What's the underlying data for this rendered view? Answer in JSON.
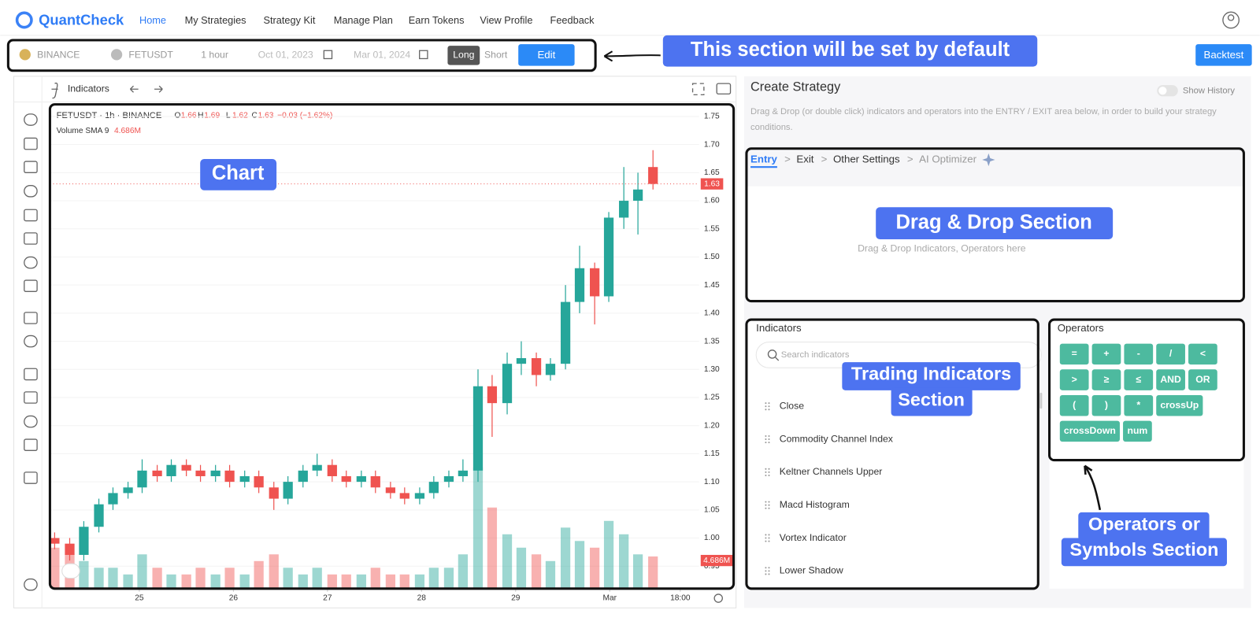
{
  "header": {
    "logo": "QuantCheck",
    "nav": [
      "Home",
      "My Strategies",
      "Strategy Kit",
      "Manage Plan",
      "Earn Tokens",
      "View Profile",
      "Feedback"
    ]
  },
  "toolbar": {
    "exchange": "BINANCE",
    "symbol": "FETUSDT",
    "interval": "1 hour",
    "start_date": "Oct 01, 2023",
    "end_date": "Mar 01, 2024",
    "long": "Long",
    "short": "Short",
    "edit": "Edit",
    "backtest": "Backtest"
  },
  "chart_panel": {
    "indicators_button": "Indicators",
    "symbol_info": "FETUSDT · 1h · BINANCE",
    "ohlc": [
      {
        "label": "O",
        "value": "1.66"
      },
      {
        "label": "H",
        "value": "1.69"
      },
      {
        "label": "L",
        "value": "1.62"
      },
      {
        "label": "C",
        "value": "1.63"
      }
    ],
    "change": "−0.03 (−1.62%)",
    "volume_label": "Volume SMA 9",
    "volume_value": "4.686M",
    "price_tag": "1.63",
    "volume_tag": "4.686M"
  },
  "chart_data": {
    "type": "candlestick",
    "up_color": "#26a69a",
    "down_color": "#ef5350",
    "x": [
      24.1,
      24.26,
      24.41,
      24.57,
      24.72,
      24.88,
      25.03,
      25.19,
      25.34,
      25.5,
      25.65,
      25.81,
      25.96,
      26.12,
      26.27,
      26.43,
      26.58,
      26.74,
      26.89,
      27.05,
      27.2,
      27.36,
      27.51,
      27.67,
      27.82,
      27.98,
      28.13,
      28.29,
      28.44,
      28.6,
      28.75,
      28.91,
      29.06,
      29.22,
      29.37,
      29.53,
      29.68,
      29.84,
      29.99,
      30.15,
      30.3,
      30.46
    ],
    "open": [
      1.0,
      0.99,
      0.97,
      1.02,
      1.06,
      1.08,
      1.09,
      1.12,
      1.11,
      1.13,
      1.12,
      1.11,
      1.12,
      1.1,
      1.11,
      1.09,
      1.07,
      1.1,
      1.12,
      1.13,
      1.11,
      1.1,
      1.11,
      1.09,
      1.08,
      1.07,
      1.08,
      1.1,
      1.11,
      1.12,
      1.27,
      1.24,
      1.31,
      1.32,
      1.29,
      1.31,
      1.42,
      1.48,
      1.43,
      1.57,
      1.6,
      1.66
    ],
    "high": [
      1.01,
      1.0,
      1.03,
      1.07,
      1.09,
      1.1,
      1.14,
      1.13,
      1.14,
      1.14,
      1.13,
      1.13,
      1.13,
      1.12,
      1.12,
      1.1,
      1.11,
      1.13,
      1.15,
      1.14,
      1.12,
      1.12,
      1.12,
      1.1,
      1.09,
      1.09,
      1.11,
      1.12,
      1.14,
      1.3,
      1.29,
      1.33,
      1.35,
      1.33,
      1.32,
      1.45,
      1.52,
      1.49,
      1.58,
      1.66,
      1.65,
      1.69
    ],
    "low": [
      0.98,
      0.96,
      0.96,
      1.01,
      1.05,
      1.07,
      1.08,
      1.1,
      1.1,
      1.11,
      1.1,
      1.1,
      1.09,
      1.09,
      1.08,
      1.05,
      1.06,
      1.09,
      1.11,
      1.1,
      1.09,
      1.09,
      1.08,
      1.07,
      1.06,
      1.06,
      1.07,
      1.09,
      1.1,
      1.1,
      1.18,
      1.22,
      1.29,
      1.27,
      1.28,
      1.3,
      1.4,
      1.38,
      1.42,
      1.55,
      1.54,
      1.62
    ],
    "close": [
      0.99,
      0.97,
      1.02,
      1.06,
      1.08,
      1.09,
      1.12,
      1.11,
      1.13,
      1.12,
      1.11,
      1.12,
      1.1,
      1.11,
      1.09,
      1.07,
      1.1,
      1.12,
      1.13,
      1.11,
      1.1,
      1.11,
      1.09,
      1.08,
      1.07,
      1.08,
      1.1,
      1.11,
      1.12,
      1.27,
      1.24,
      1.31,
      1.32,
      1.29,
      1.31,
      1.42,
      1.48,
      1.43,
      1.57,
      1.6,
      1.62,
      1.63
    ],
    "volume": [
      6,
      5,
      4,
      3,
      3,
      2,
      5,
      3,
      2,
      2,
      3,
      2,
      3,
      2,
      4,
      5,
      3,
      2,
      3,
      2,
      2,
      2,
      3,
      2,
      2,
      2,
      3,
      3,
      5,
      18,
      12,
      8,
      6,
      5,
      4,
      9,
      7,
      6,
      10,
      8,
      5,
      4.686
    ],
    "xlim": [
      24.05,
      30.95
    ],
    "xticks": [
      25,
      26,
      27,
      28,
      29,
      {
        "value": 30,
        "label": "Mar"
      },
      {
        "value": 30.75,
        "label": "18:00"
      }
    ],
    "ylim": [
      0.95,
      1.75
    ],
    "yticks": [
      0.95,
      {
        "value": 1.0,
        "label": "1.00"
      },
      1.05,
      {
        "value": 1.1,
        "label": "1.10"
      },
      1.15,
      {
        "value": 1.2,
        "label": "1.20"
      },
      1.25,
      {
        "value": 1.3,
        "label": "1.30"
      },
      1.35,
      {
        "value": 1.4,
        "label": "1.40"
      },
      1.45,
      {
        "value": 1.5,
        "label": "1.50"
      },
      1.55,
      {
        "value": 1.6,
        "label": "1.60"
      },
      1.65,
      {
        "value": 1.7,
        "label": "1.70"
      },
      1.75
    ]
  },
  "strategy": {
    "title": "Create Strategy",
    "show_history": "Show History",
    "description": [
      "Drag & Drop (or double click) indicators and operators into the ENTRY / EXIT area below, in order to build your strategy",
      "conditions."
    ],
    "tabs": [
      "Entry",
      "Exit",
      "Other Settings",
      "AI Optimizer"
    ],
    "separator": ">",
    "drop_placeholder": "Drag & Drop Indicators, Operators here"
  },
  "indicators": {
    "title": "Indicators",
    "search_placeholder": "Search indicators",
    "items": [
      "Close",
      "Commodity Channel Index",
      "Keltner Channels Upper",
      "Macd Histogram",
      "Vortex Indicator",
      "Lower Shadow"
    ]
  },
  "operators": {
    "title": "Operators",
    "buttons": [
      "=",
      "+",
      "-",
      "/",
      "<",
      ">",
      "≥",
      "≤",
      "AND",
      "OR",
      "(",
      ")",
      "*",
      "crossUp",
      "crossDown",
      "num"
    ]
  },
  "annotations": {
    "default_section": "This section will be set by default",
    "chart": "Chart",
    "drag_drop": "Drag & Drop Section",
    "indicators": [
      "Trading Indicators",
      "Section"
    ],
    "operators": [
      "Operators or",
      "Symbols Section"
    ]
  }
}
